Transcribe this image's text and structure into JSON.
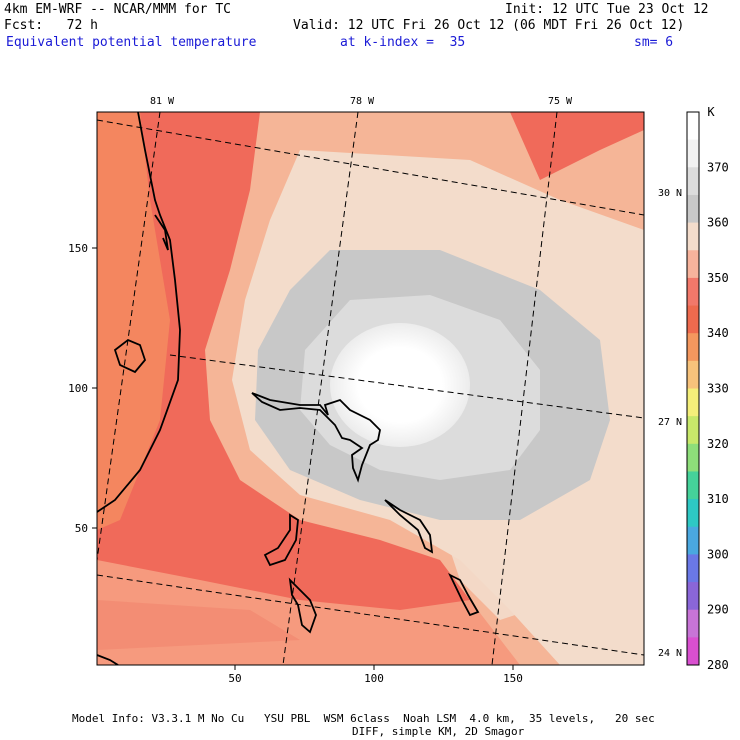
{
  "header": {
    "model": "4km EM-WRF -- NCAR/MMM for TC",
    "init": "Init: 12 UTC Tue 23 Oct 12",
    "fcst": "Fcst:   72 h",
    "valid": "Valid: 12 UTC Fri 26 Oct 12 (06 MDT Fri 26 Oct 12)",
    "field": "Equivalent potential temperature",
    "level": "at k-index =  35",
    "smooth": "sm= 6"
  },
  "map": {
    "x_ticks": [
      "50",
      "100",
      "150"
    ],
    "y_ticks": [
      "150",
      "100",
      "50"
    ],
    "lon_labels": [
      "81 W",
      "78 W",
      "75 W"
    ],
    "lat_labels": [
      "30 N",
      "27 N",
      "24 N"
    ]
  },
  "colorbar": {
    "unit": "K",
    "labels": [
      "370",
      "360",
      "350",
      "340",
      "330",
      "320",
      "310",
      "300",
      "290",
      "280"
    ],
    "colors": [
      "#ffffff",
      "#f2f2f2",
      "#dcdcdc",
      "#c8c8c8",
      "#f3dccb",
      "#f7b39c",
      "#f2786a",
      "#ee6a4e",
      "#f4975e",
      "#f7c27b",
      "#f5ef7a",
      "#c8e86a",
      "#8ede7a",
      "#45d29a",
      "#2ec8c4",
      "#4aa8e0",
      "#6a78e6",
      "#8a66d8",
      "#c774d6",
      "#d94fd0"
    ]
  },
  "footer": {
    "line1": "Model Info: V3.3.1 M No Cu   YSU PBL  WSM 6class  Noah LSM  4.0 km,  35 levels,   20 sec",
    "line2": "DIFF, simple KM, 2D Smagor"
  }
}
